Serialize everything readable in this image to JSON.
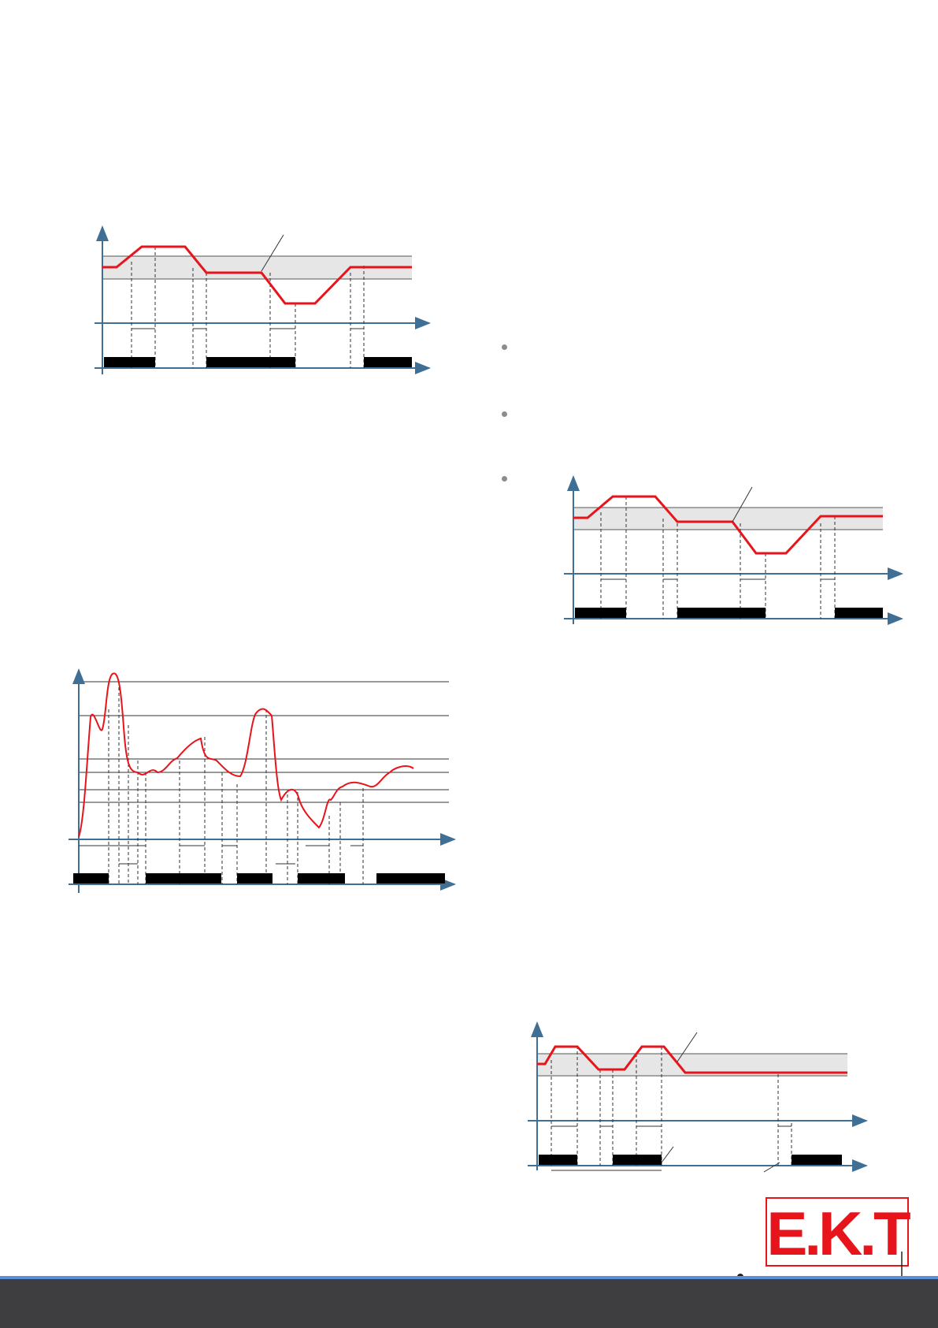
{
  "theme": {
    "signal_color": "#e8141b",
    "band_color": "#e6e6e6",
    "axis_color": "#3f6f94",
    "output_color": "#000000",
    "footer_color": "#3e3e40",
    "footer_accent": "#5b8fd6",
    "logo_color": "#e8141b"
  },
  "logo": {
    "text": "E.K.T"
  },
  "footer": {
    "text": ""
  },
  "icons": [
    "bullet-icon",
    "arrow-head-icon",
    "logo-mark"
  ]
}
